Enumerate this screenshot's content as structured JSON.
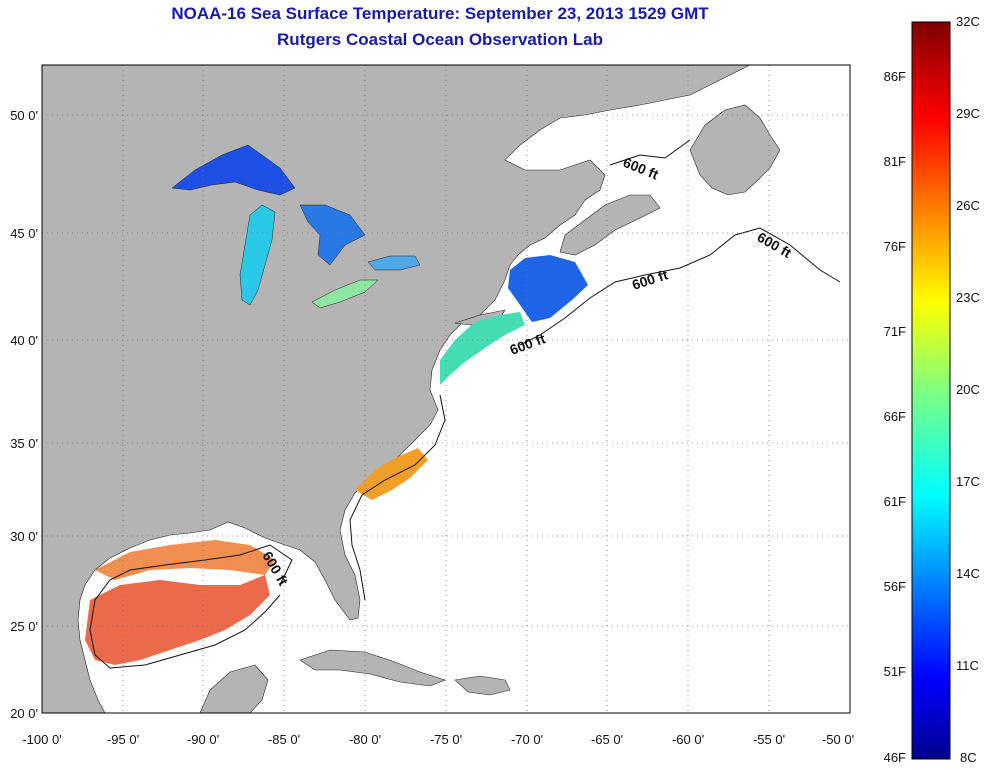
{
  "header": {
    "title": "NOAA-16 Sea Surface Temperature:  September 23, 2013 1529 GMT",
    "subtitle": "Rutgers Coastal Ocean Observation Lab"
  },
  "map": {
    "lon_ticks": [
      "-100 0'",
      "-95 0'",
      "-90 0'",
      "-85 0'",
      "-80 0'",
      "-75 0'",
      "-70 0'",
      "-65 0'",
      "-60 0'",
      "-55 0'",
      "-50 0'"
    ],
    "lat_ticks": [
      "20 0'",
      "25 0'",
      "30 0'",
      "35 0'",
      "40 0'",
      "45 0'",
      "50 0'"
    ],
    "contour_labels": [
      "600 ft",
      "600 ft",
      "600 ft",
      "600 ft",
      "600 ft"
    ],
    "land_color": "#b4b4b4",
    "water_color": "#ffffff"
  },
  "colorbar": {
    "celsius": [
      "32C",
      "29C",
      "26C",
      "23C",
      "20C",
      "17C",
      "14C",
      "11C",
      "8C"
    ],
    "fahrenheit": [
      "86F",
      "81F",
      "76F",
      "71F",
      "66F",
      "61F",
      "56F",
      "51F",
      "46F"
    ]
  }
}
